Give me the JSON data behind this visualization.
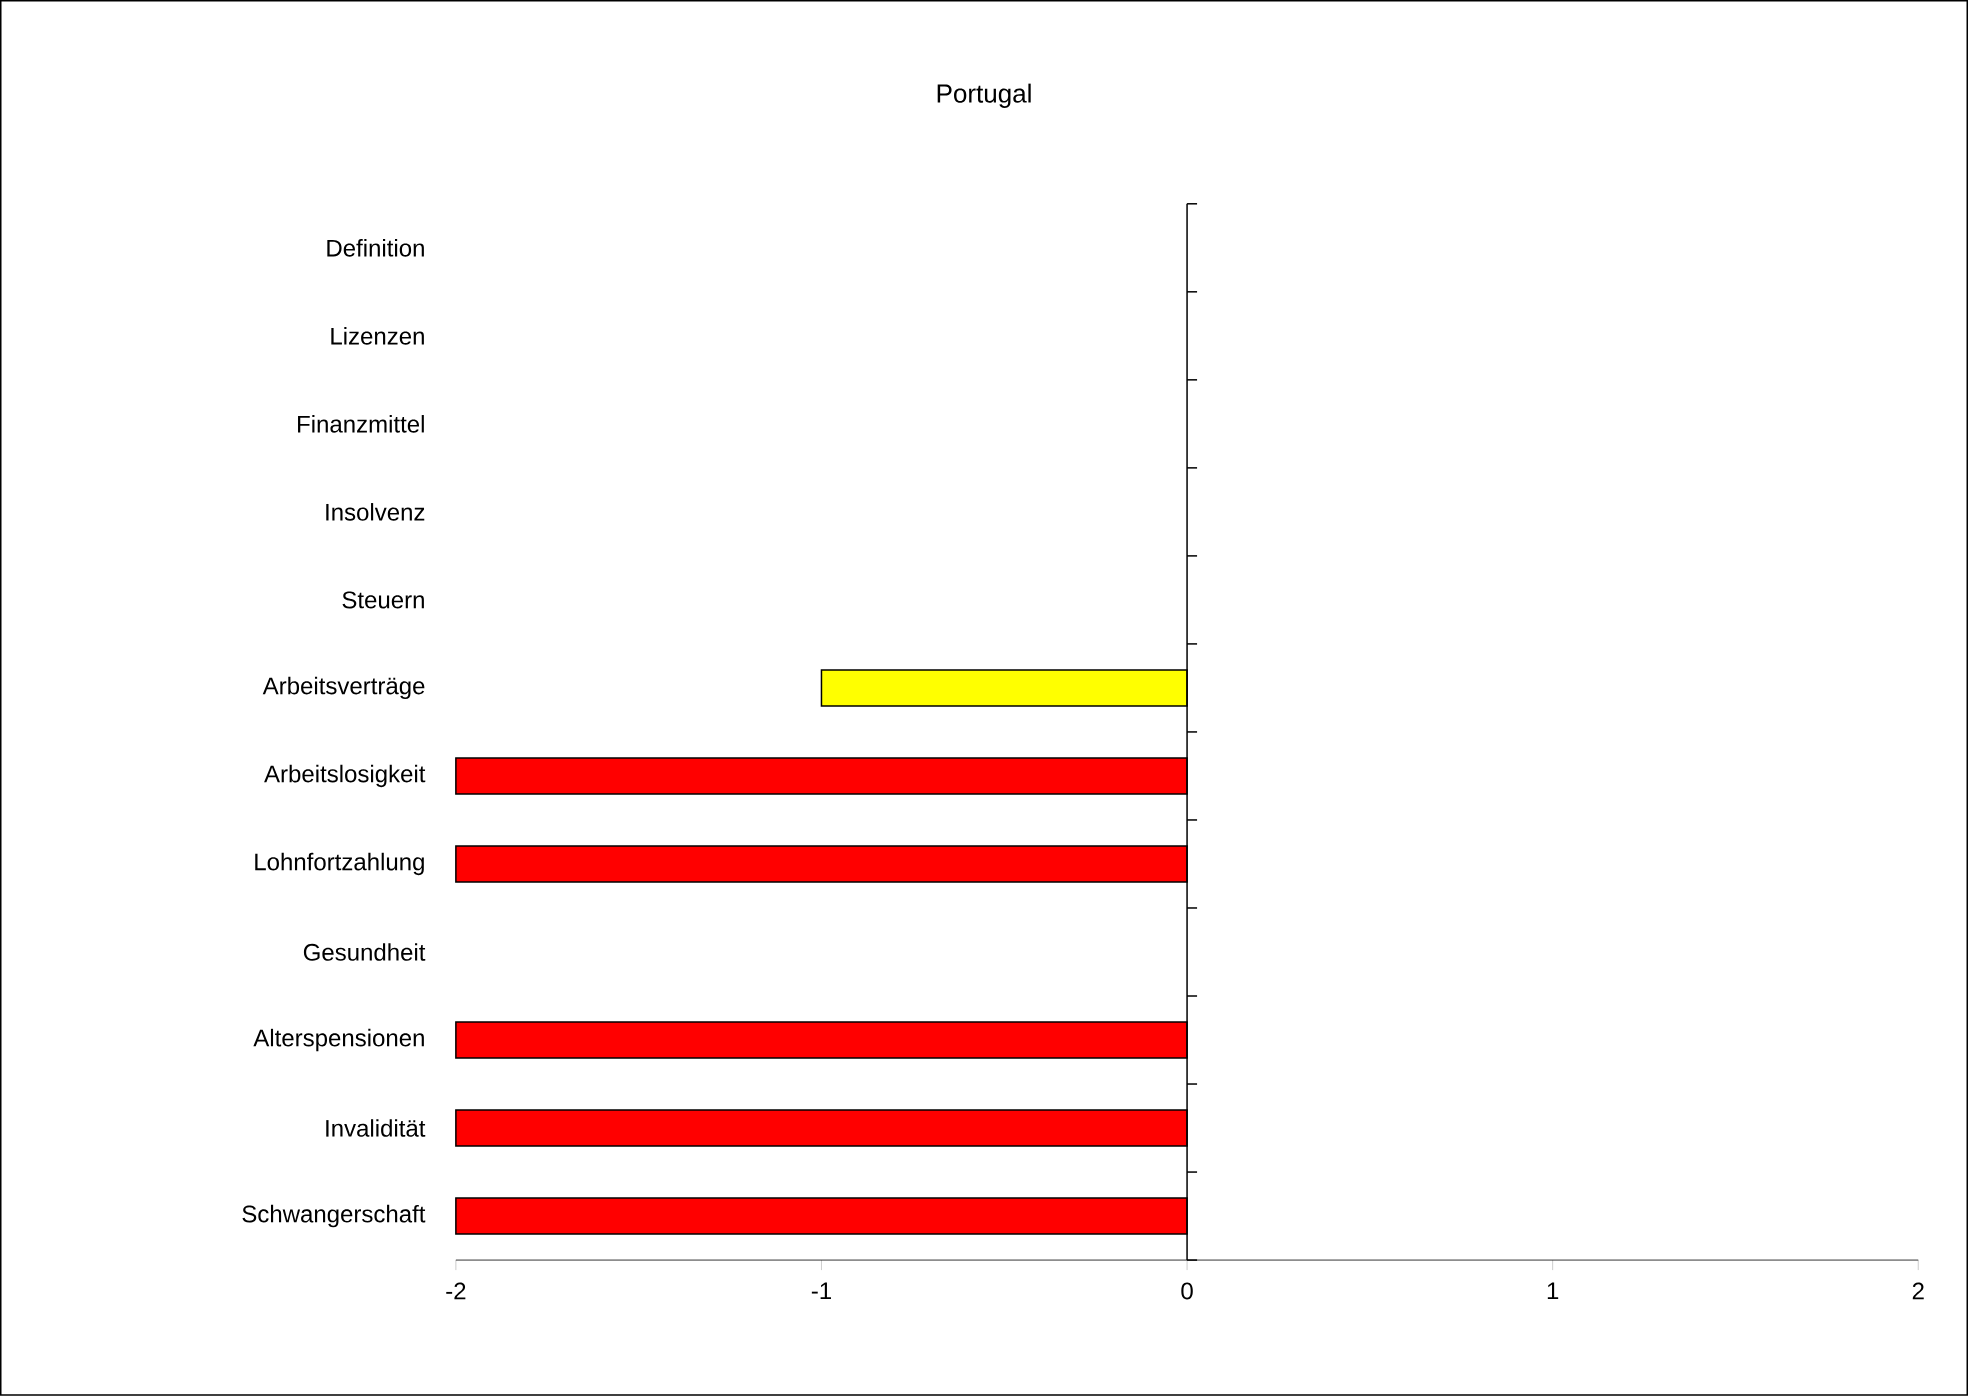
{
  "chart_data": {
    "type": "bar",
    "orientation": "horizontal",
    "title": "Portugal",
    "categories": [
      "Definition",
      "Lizenzen",
      "Finanzmittel",
      "Insolvenz",
      "Steuern",
      "Arbeitsverträge",
      "Arbeitslosigkeit",
      "Lohnfortzahlung",
      "Gesundheit",
      "Alterspensionen",
      "Invalidität",
      "Schwangerschaft"
    ],
    "values": [
      null,
      null,
      null,
      null,
      null,
      -1,
      -2,
      -2,
      null,
      -2,
      -2,
      -2
    ],
    "colors": [
      "#ff0000",
      "#ff0000",
      "#ff0000",
      "#ff0000",
      "#ff0000",
      "#ffff00",
      "#ff0000",
      "#ff0000",
      "#ff0000",
      "#ff0000",
      "#ff0000",
      "#ff0000"
    ],
    "xlim": [
      -2,
      2
    ],
    "xticks": [
      -2,
      -1,
      0,
      1,
      2
    ]
  }
}
